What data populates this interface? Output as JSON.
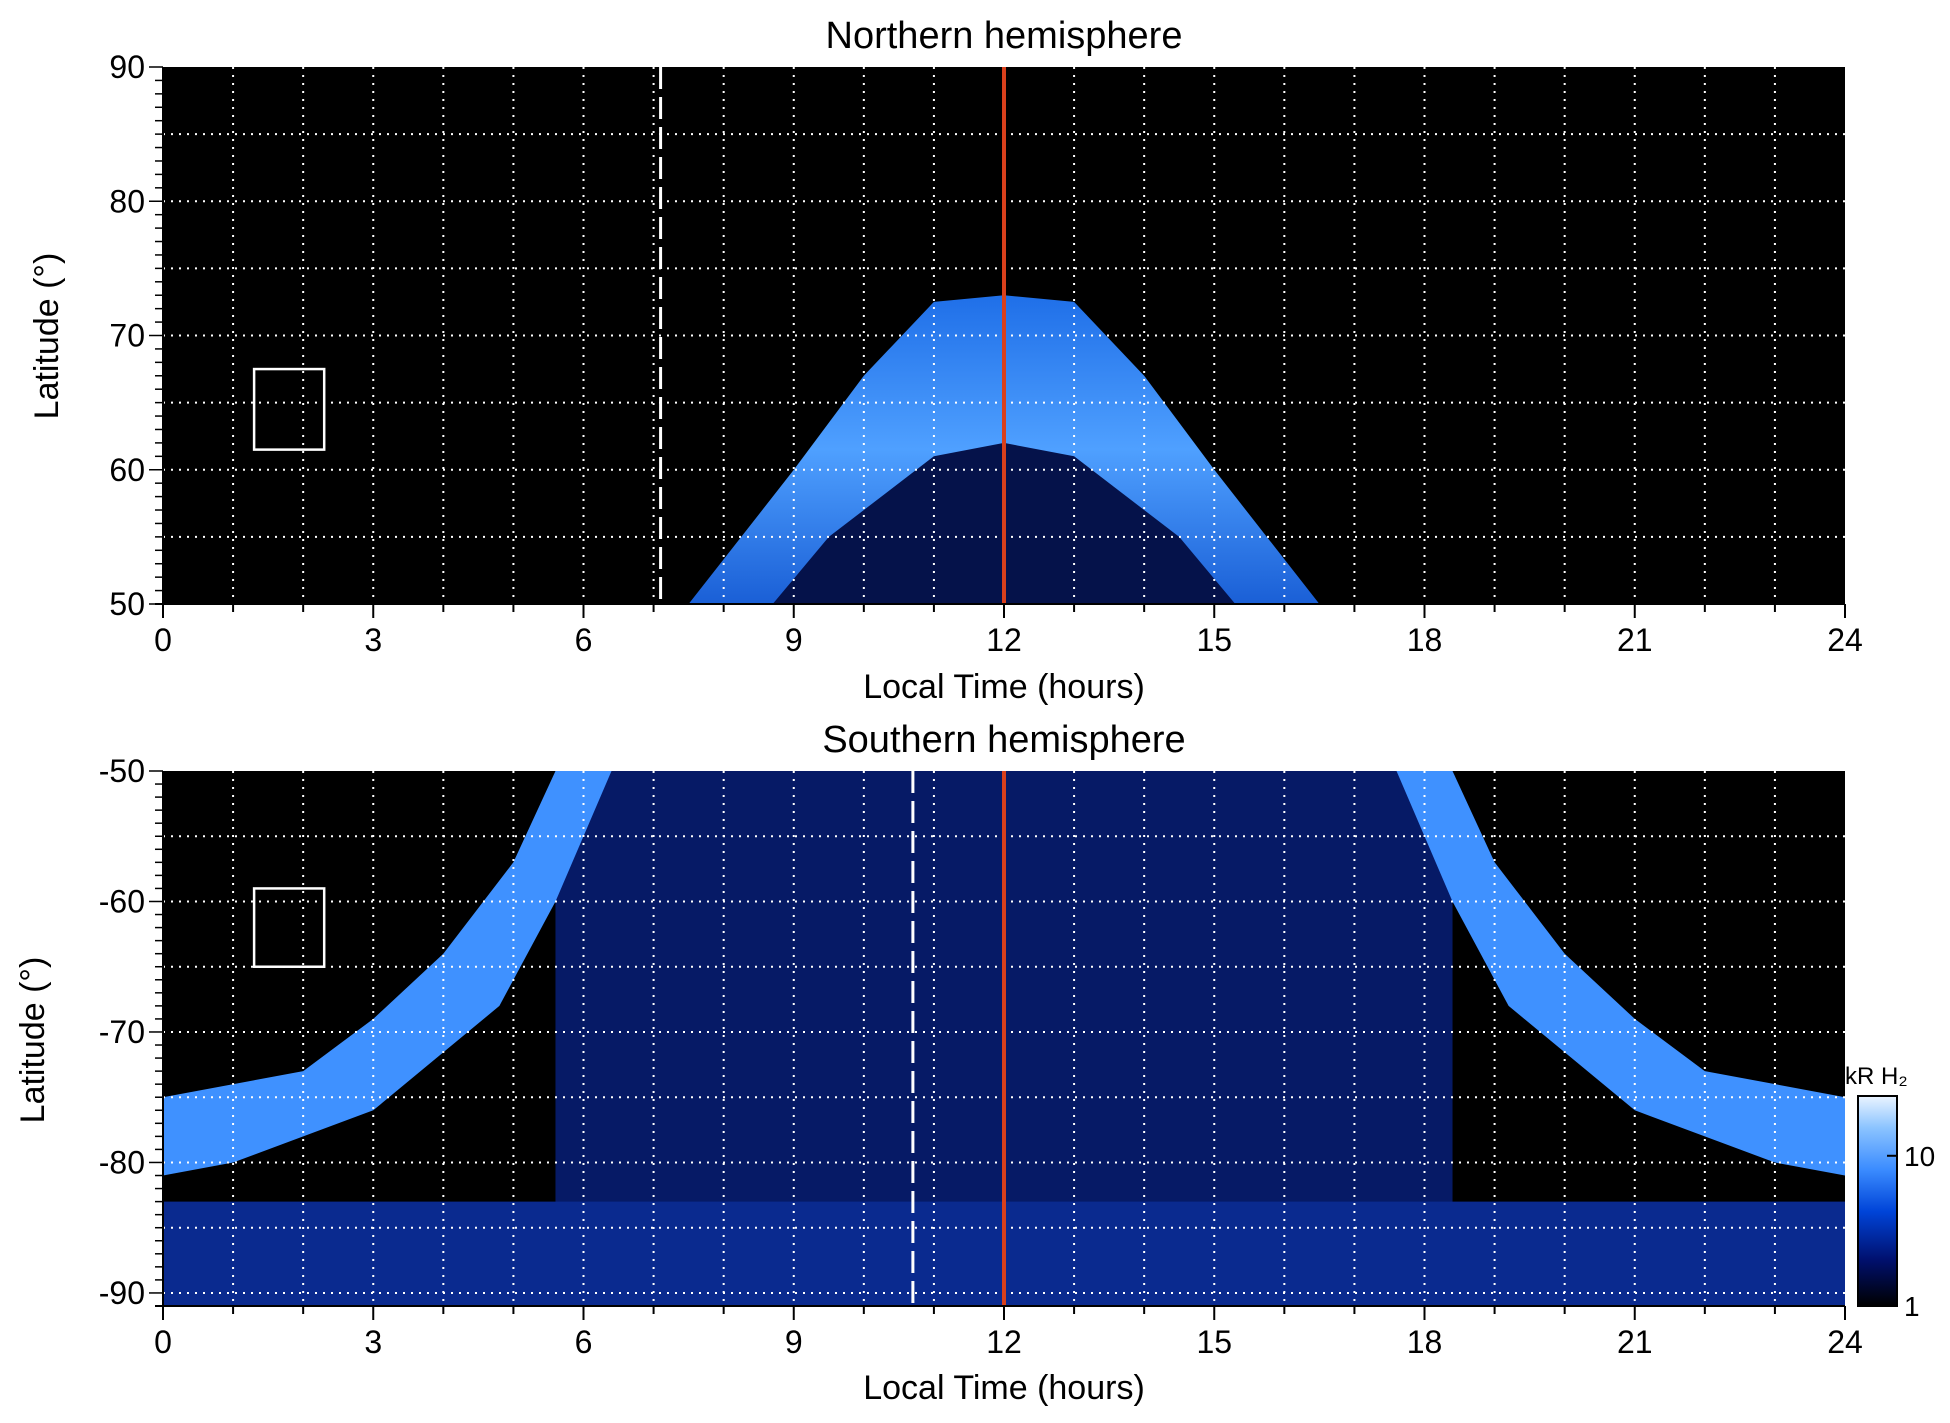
{
  "chart_data": [
    {
      "type": "heatmap",
      "title": "Northern hemisphere",
      "xlabel": "Local Time (hours)",
      "ylabel": "Latitude (°)",
      "xlim": [
        0,
        24
      ],
      "ylim": [
        50,
        90
      ],
      "x_ticks": [
        0,
        3,
        6,
        9,
        12,
        15,
        18,
        21,
        24
      ],
      "y_ticks": [
        50,
        60,
        70,
        80,
        90
      ],
      "grid": true,
      "background": "#000000",
      "aurora_oval": {
        "outer_boundary": [
          [
            7.5,
            50
          ],
          [
            9,
            60
          ],
          [
            10,
            67
          ],
          [
            11,
            72.5
          ],
          [
            12,
            73
          ],
          [
            13,
            72.5
          ],
          [
            14,
            67
          ],
          [
            15,
            60
          ],
          [
            16.5,
            50
          ]
        ],
        "inner_boundary": [
          [
            8.7,
            50
          ],
          [
            9.5,
            55
          ],
          [
            11,
            61
          ],
          [
            12,
            62
          ],
          [
            13,
            61
          ],
          [
            14.5,
            55
          ],
          [
            15.3,
            50
          ]
        ],
        "brightness_kR": 10
      },
      "dashed_line_x": 7.1,
      "reference_line_x": 12,
      "reference_line_color": "#d9401c",
      "box": {
        "x": [
          1.3,
          2.3
        ],
        "y": [
          61.5,
          67.5
        ]
      }
    },
    {
      "type": "heatmap",
      "title": "Southern hemisphere",
      "xlabel": "Local Time (hours)",
      "ylabel": "Latitude (°)",
      "xlim": [
        0,
        24
      ],
      "ylim": [
        -91,
        -50
      ],
      "x_ticks": [
        0,
        3,
        6,
        9,
        12,
        15,
        18,
        21,
        24
      ],
      "y_ticks": [
        -50,
        -60,
        -70,
        -80,
        -90
      ],
      "grid": true,
      "background": "#000000",
      "aurora_oval": {
        "left_arc": [
          [
            0,
            -75
          ],
          [
            2,
            -73
          ],
          [
            3,
            -69
          ],
          [
            4,
            -64
          ],
          [
            5,
            -57
          ],
          [
            5.6,
            -50
          ]
        ],
        "right_arc": [
          [
            18.4,
            -50
          ],
          [
            19,
            -57
          ],
          [
            20,
            -64
          ],
          [
            21,
            -69
          ],
          [
            22,
            -73
          ],
          [
            24,
            -75
          ]
        ],
        "brightness_kR": 15
      },
      "dashed_line_x": 10.7,
      "reference_line_x": 12,
      "reference_line_color": "#d9401c",
      "box": {
        "x": [
          1.3,
          2.3
        ],
        "y": [
          -65,
          -59
        ]
      }
    }
  ],
  "colorbar": {
    "label": "kR H₂",
    "ticks": [
      1,
      10
    ],
    "range": [
      1,
      25
    ],
    "scale": "log",
    "colors": [
      "#000000",
      "#00106e",
      "#0044d8",
      "#3b8cff",
      "#8cc4ff",
      "#eaf4ff"
    ]
  }
}
